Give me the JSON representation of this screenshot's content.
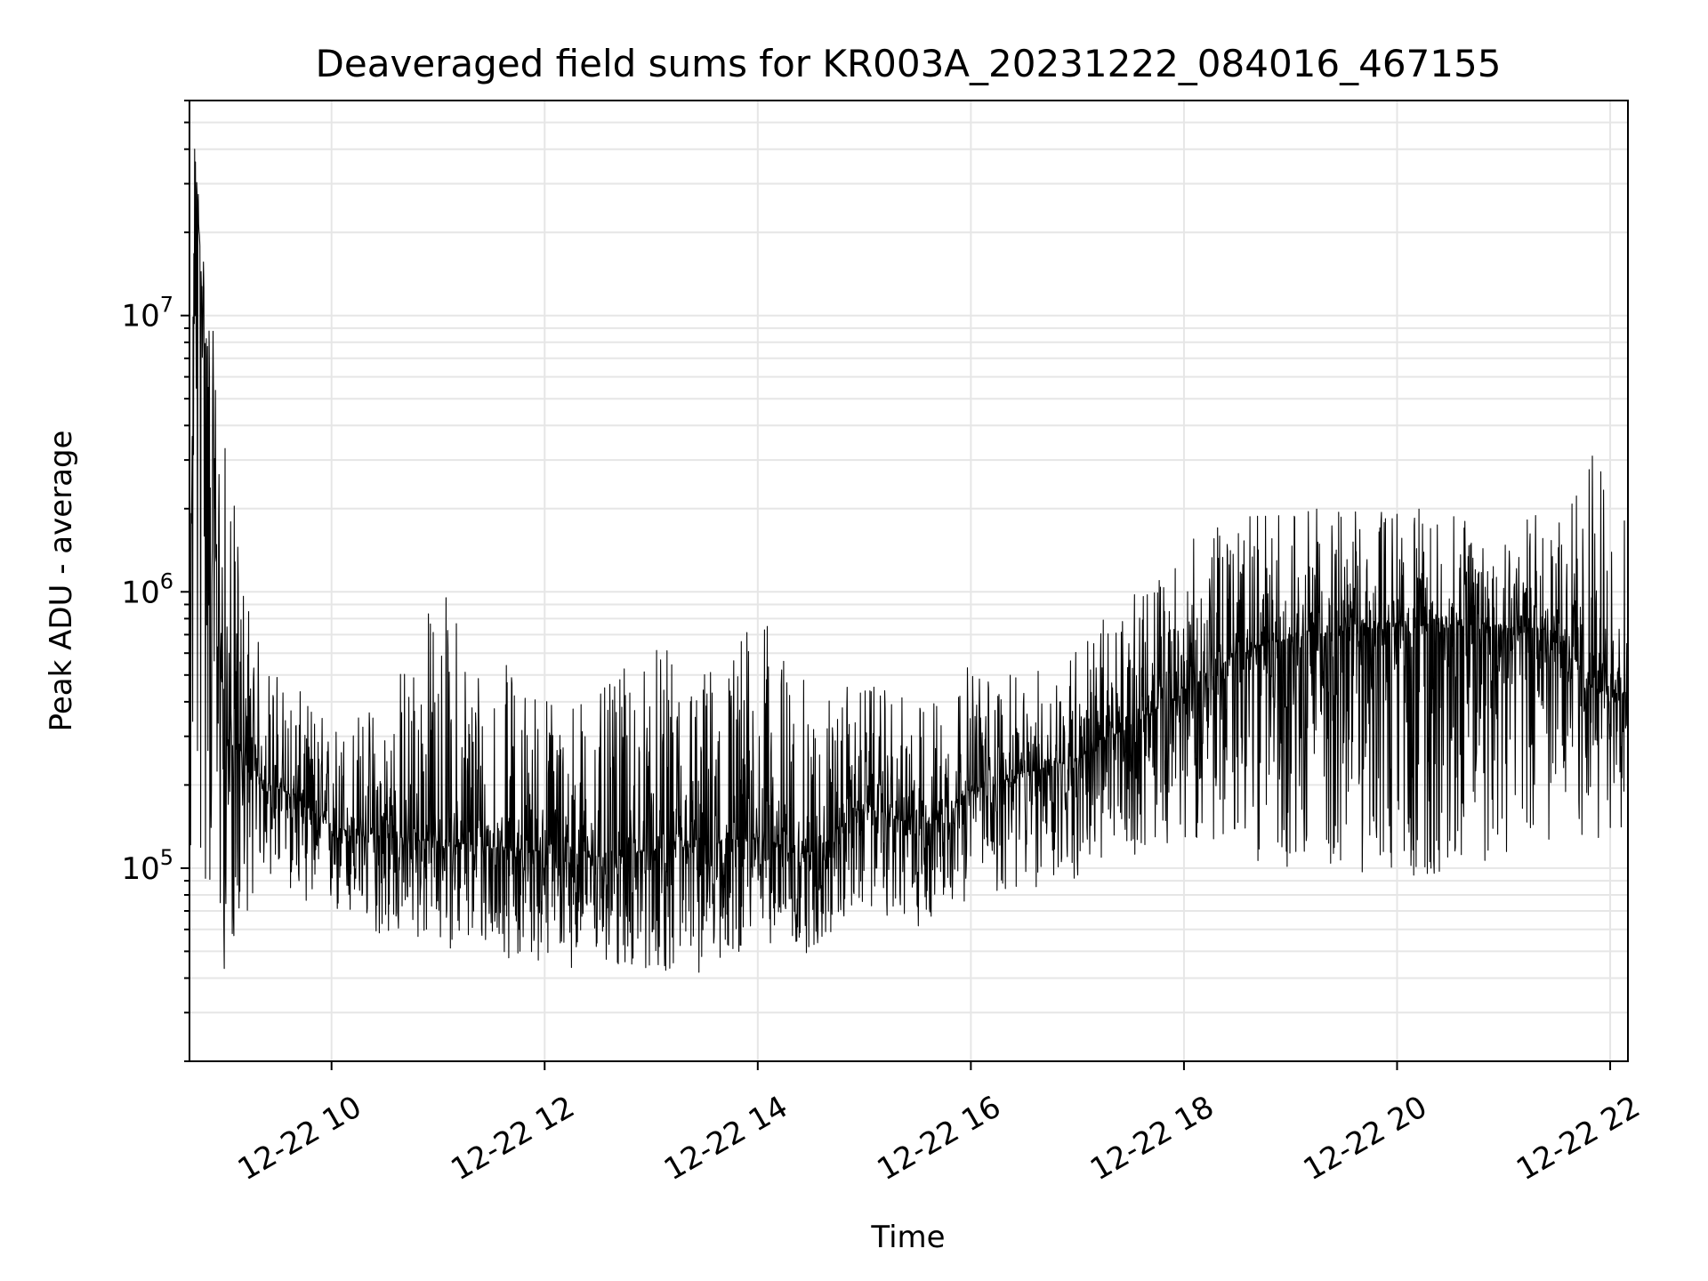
{
  "chart_data": {
    "type": "line",
    "title": "Deaveraged field sums for KR003A_20231222_084016_467155",
    "xlabel": "Time",
    "ylabel": "Peak ADU - average",
    "yscale": "log",
    "ylim": [
      20000,
      60000000
    ],
    "xlim": [
      "2023-12-22T08:40",
      "2023-12-22T22:10"
    ],
    "grid": true,
    "line_color": "#000000",
    "grid_color": "#e6e6e6",
    "x_ticks": [
      {
        "t": "2023-12-22T10:00",
        "label": "12-22 10"
      },
      {
        "t": "2023-12-22T12:00",
        "label": "12-22 12"
      },
      {
        "t": "2023-12-22T14:00",
        "label": "12-22 14"
      },
      {
        "t": "2023-12-22T16:00",
        "label": "12-22 16"
      },
      {
        "t": "2023-12-22T18:00",
        "label": "12-22 18"
      },
      {
        "t": "2023-12-22T20:00",
        "label": "12-22 20"
      },
      {
        "t": "2023-12-22T22:00",
        "label": "12-22 22"
      }
    ],
    "y_ticks": [
      {
        "value": 100000,
        "base": "10",
        "exp": "5"
      },
      {
        "value": 1000000,
        "base": "10",
        "exp": "6"
      },
      {
        "value": 10000000,
        "base": "10",
        "exp": "7"
      }
    ],
    "series": [
      {
        "x": [
          "2023-12-22T08:40",
          "2023-12-22T08:43",
          "2023-12-22T09:00",
          "2023-12-22T09:20",
          "2023-12-22T09:40",
          "2023-12-22T10:00",
          "2023-12-22T10:30",
          "2023-12-22T11:00",
          "2023-12-22T11:30",
          "2023-12-22T12:00",
          "2023-12-22T12:30",
          "2023-12-22T13:00",
          "2023-12-22T13:30",
          "2023-12-22T14:00",
          "2023-12-22T14:30",
          "2023-12-22T15:00",
          "2023-12-22T15:30",
          "2023-12-22T16:00",
          "2023-12-22T16:30",
          "2023-12-22T17:00",
          "2023-12-22T17:30",
          "2023-12-22T18:00",
          "2023-12-22T18:30",
          "2023-12-22T19:00",
          "2023-12-22T19:30",
          "2023-12-22T20:00",
          "2023-12-22T20:30",
          "2023-12-22T21:00",
          "2023-12-22T21:30",
          "2023-12-22T21:50",
          "2023-12-22T22:10"
        ],
        "y": [
          250000,
          40000000,
          300000,
          210000,
          180000,
          140000,
          130000,
          125000,
          120000,
          115000,
          110000,
          115000,
          120000,
          130000,
          110000,
          170000,
          140000,
          190000,
          220000,
          250000,
          330000,
          430000,
          600000,
          680000,
          720000,
          750000,
          760000,
          760000,
          720000,
          450000,
          420000
        ],
        "y_low": [
          75000,
          80000,
          40000,
          95000,
          80000,
          65000,
          55000,
          52000,
          48000,
          45000,
          42000,
          42000,
          40000,
          55000,
          48000,
          72000,
          60000,
          78000,
          80000,
          90000,
          110000,
          130000,
          110000,
          100000,
          95000,
          90000,
          90000,
          110000,
          120000,
          115000,
          140000
        ],
        "y_high": [
          800000,
          40000000,
          3300000,
          620000,
          450000,
          350000,
          430000,
          1150000,
          600000,
          480000,
          430000,
          650000,
          560000,
          880000,
          440000,
          470000,
          400000,
          560000,
          480000,
          700000,
          950000,
          1500000,
          1900000,
          2050000,
          2000000,
          2100000,
          1900000,
          2000000,
          1900000,
          3100000,
          2100000
        ]
      }
    ]
  }
}
